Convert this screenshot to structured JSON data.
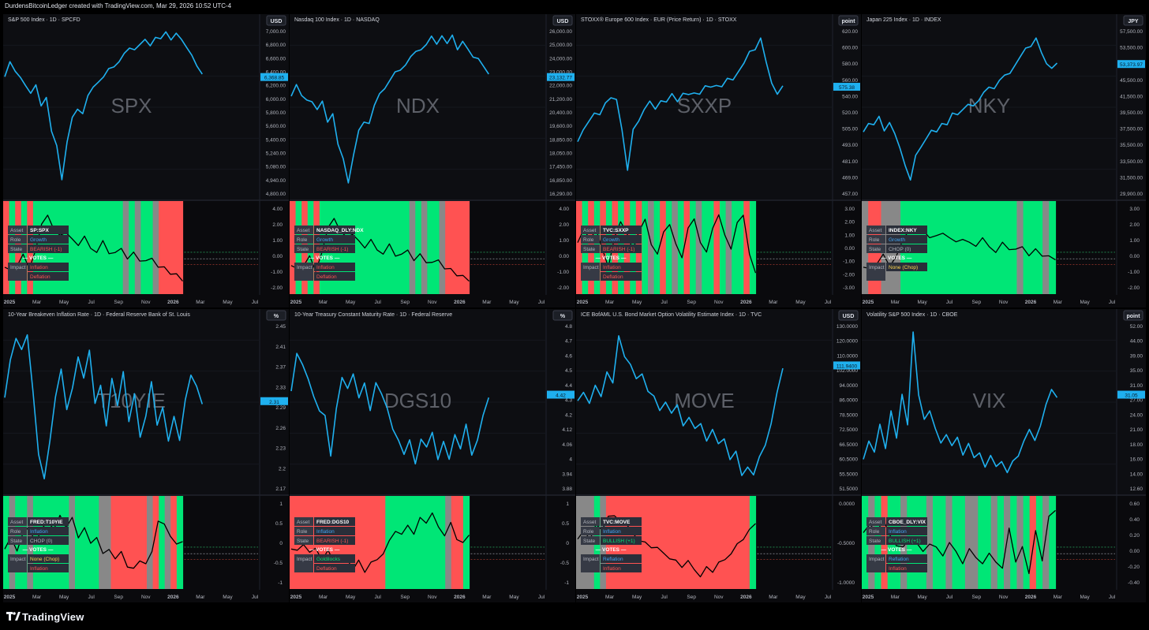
{
  "header": {
    "attribution": "DurdensBitcoinLedger created with TradingView.com, Mar 29, 2026 10:52 UTC-4"
  },
  "footer": {
    "brand": "TradingView"
  },
  "colors": {
    "price_line": "#1fb0ef",
    "bullish_band": "#00e676",
    "bearish_band": "#ff5252",
    "chop_band": "#888888",
    "panel_bg": "#0d0e12",
    "label_box": "#22ab94"
  },
  "time_axis": [
    "2025",
    "Mar",
    "May",
    "Jul",
    "Sep",
    "Nov",
    "2026",
    "Mar",
    "May",
    "Jul"
  ],
  "panels": [
    {
      "title": "S&P 500 Index · 1D · SPCFD",
      "currency": "USD",
      "watermark": "SPX",
      "price_ticks": [
        "7,000.00",
        "6,800.00",
        "6,600.00",
        "6,400.00",
        "6,200.00",
        "6,000.00",
        "5,800.00",
        "5,600.00",
        "5,400.00",
        "5,240.00",
        "5,080.00",
        "4,940.00",
        "4,800.00"
      ],
      "last_price": "6,368.85",
      "price_path": [
        0.74,
        0.82,
        0.75,
        0.7,
        0.68,
        0.62,
        0.66,
        0.56,
        0.6,
        0.38,
        0.28,
        0.1,
        0.32,
        0.46,
        0.54,
        0.5,
        0.6,
        0.64,
        0.7,
        0.72,
        0.76,
        0.8,
        0.82,
        0.86,
        0.88,
        0.9,
        0.92,
        0.94,
        0.93,
        0.97,
        0.95,
        0.98,
        0.96,
        0.99,
        0.94,
        0.92,
        0.86,
        0.78,
        0.72
      ],
      "price_end_frac": 0.72,
      "osc_ticks": [
        "4.00",
        "2.00",
        "1.00",
        "0.00",
        "-1.00",
        "-2.00"
      ],
      "osc_path": [
        0.3,
        0.22,
        0.3,
        0.4,
        0.25,
        0.5,
        0.78,
        0.92,
        0.7,
        0.66,
        0.72,
        0.6,
        0.55,
        0.62,
        0.5,
        0.48,
        0.58,
        0.45,
        0.42,
        0.5,
        0.4,
        0.44,
        0.36,
        0.32,
        0.38,
        0.3,
        0.26,
        0.2,
        0.16,
        0.1
      ],
      "bands": [
        "R",
        "G",
        "R",
        "G",
        "R",
        "G",
        "G",
        "G",
        "G",
        "G",
        "G",
        "G",
        "G",
        "G",
        "G",
        "G",
        "G",
        "G",
        "G",
        "G",
        "N",
        "G",
        "N",
        "G",
        "G",
        "N",
        "R",
        "R",
        "R",
        "R"
      ],
      "labels": {
        "asset": "SP:SPX",
        "role": "Growth",
        "state": "BEARISH (-1)",
        "votes": "— VOTES —",
        "impact1": "Inflation",
        "impact2": "Deflation"
      },
      "label_colors": {
        "role": "#42a5f5",
        "state": "#ff5252",
        "impact1": "#ff5252",
        "impact2": "#ff5252"
      }
    },
    {
      "title": "Nasdaq 100 Index · 1D · NASDAQ",
      "currency": "USD",
      "watermark": "NDX",
      "price_ticks": [
        "26,000.00",
        "25,000.00",
        "24,000.00",
        "23,000.00",
        "22,000.00",
        "21,200.00",
        "20,400.00",
        "19,600.00",
        "18,850.00",
        "18,050.00",
        "17,450.00",
        "16,850.00",
        "16,290.00"
      ],
      "last_price": "23,132.77",
      "price_path": [
        0.62,
        0.68,
        0.6,
        0.56,
        0.58,
        0.52,
        0.56,
        0.46,
        0.5,
        0.3,
        0.2,
        0.08,
        0.24,
        0.38,
        0.46,
        0.44,
        0.54,
        0.6,
        0.66,
        0.7,
        0.74,
        0.78,
        0.8,
        0.84,
        0.86,
        0.9,
        0.92,
        0.96,
        0.94,
        0.98,
        0.92,
        0.96,
        0.9,
        0.94,
        0.88,
        0.86,
        0.84,
        0.78,
        0.72
      ],
      "price_end_frac": 0.72,
      "osc_ticks": [
        "4.00",
        "2.00",
        "1.00",
        "0.00",
        "-1.00",
        "-2.00"
      ],
      "osc_path": [
        0.32,
        0.24,
        0.3,
        0.38,
        0.22,
        0.48,
        0.74,
        0.88,
        0.68,
        0.64,
        0.7,
        0.58,
        0.52,
        0.58,
        0.48,
        0.46,
        0.54,
        0.42,
        0.4,
        0.48,
        0.38,
        0.42,
        0.34,
        0.3,
        0.36,
        0.28,
        0.24,
        0.18,
        0.14,
        0.1
      ],
      "bands": [
        "R",
        "G",
        "R",
        "G",
        "R",
        "G",
        "G",
        "G",
        "G",
        "G",
        "G",
        "G",
        "G",
        "G",
        "G",
        "G",
        "G",
        "G",
        "G",
        "G",
        "N",
        "G",
        "N",
        "G",
        "G",
        "N",
        "R",
        "R",
        "R",
        "R"
      ],
      "labels": {
        "asset": "NASDAQ_DLY:NDX",
        "role": "Growth",
        "state": "BEARISH (-1)",
        "votes": "— VOTES —",
        "impact1": "Inflation",
        "impact2": "Deflation"
      },
      "label_colors": {
        "role": "#42a5f5",
        "state": "#ff5252",
        "impact1": "#ff5252",
        "impact2": "#ff5252"
      }
    },
    {
      "title": "STOXX® Europe 600 Index · EUR (Price Return) · 1D · STOXX",
      "currency": "point",
      "watermark": "SXXP",
      "price_ticks": [
        "620.00",
        "600.00",
        "580.00",
        "560.00",
        "540.00",
        "520.00",
        "505.00",
        "493.00",
        "481.00",
        "469.00",
        "457.00"
      ],
      "last_price": "575.38",
      "price_path": [
        0.34,
        0.4,
        0.44,
        0.48,
        0.5,
        0.56,
        0.58,
        0.6,
        0.4,
        0.14,
        0.38,
        0.46,
        0.52,
        0.56,
        0.54,
        0.58,
        0.56,
        0.6,
        0.58,
        0.62,
        0.6,
        0.64,
        0.62,
        0.66,
        0.64,
        0.68,
        0.66,
        0.7,
        0.72,
        0.76,
        0.8,
        0.86,
        0.9,
        0.96,
        0.8,
        0.7,
        0.62,
        0.66
      ],
      "price_end_frac": 0.66,
      "osc_ticks": [
        "3.00",
        "2.00",
        "1.00",
        "0.00",
        "-1.00",
        "-2.00",
        "-3.00"
      ],
      "osc_path": [
        0.6,
        0.72,
        0.62,
        0.7,
        0.5,
        0.3,
        0.62,
        0.84,
        0.66,
        0.48,
        0.74,
        0.84,
        0.56,
        0.4,
        0.7,
        0.82,
        0.54,
        0.4,
        0.72,
        0.86,
        0.6,
        0.44,
        0.76,
        0.88,
        0.66,
        0.52,
        0.8,
        0.92,
        0.4,
        0.2
      ],
      "bands": [
        "R",
        "G",
        "R",
        "G",
        "R",
        "G",
        "R",
        "G",
        "R",
        "G",
        "R",
        "G",
        "N",
        "G",
        "R",
        "G",
        "N",
        "G",
        "R",
        "G",
        "N",
        "G",
        "G",
        "R",
        "G",
        "N",
        "G",
        "G",
        "R",
        "G"
      ],
      "labels": {
        "asset": "TVC:SXXP",
        "role": "Growth",
        "state": "BEARISH (-1)",
        "votes": "— VOTES —",
        "impact1": "Inflation",
        "impact2": "Deflation"
      },
      "label_colors": {
        "role": "#42a5f5",
        "state": "#ff5252",
        "impact1": "#ff5252",
        "impact2": "#ff5252"
      }
    },
    {
      "title": "Japan 225 Index · 1D · INDEX",
      "currency": "JPY",
      "watermark": "NKY",
      "price_ticks": [
        "57,500.00",
        "53,500.00",
        "49,500.00",
        "45,500.00",
        "41,500.00",
        "39,500.00",
        "37,500.00",
        "35,500.00",
        "33,500.00",
        "31,500.00",
        "29,900.00"
      ],
      "last_price": "53,373.97",
      "price_path": [
        0.4,
        0.44,
        0.42,
        0.46,
        0.4,
        0.44,
        0.36,
        0.3,
        0.18,
        0.08,
        0.22,
        0.3,
        0.34,
        0.38,
        0.4,
        0.44,
        0.42,
        0.48,
        0.5,
        0.52,
        0.54,
        0.56,
        0.58,
        0.62,
        0.64,
        0.66,
        0.7,
        0.72,
        0.76,
        0.8,
        0.84,
        0.88,
        0.92,
        0.96,
        0.86,
        0.82,
        0.78,
        0.8
      ],
      "price_end_frac": 0.8,
      "osc_ticks": [
        "3.00",
        "2.00",
        "1.00",
        "0.00",
        "-1.00",
        "-2.00"
      ],
      "osc_path": [
        0.3,
        0.24,
        0.32,
        0.4,
        0.28,
        0.44,
        0.6,
        0.74,
        0.68,
        0.72,
        0.66,
        0.64,
        0.7,
        0.6,
        0.58,
        0.64,
        0.56,
        0.54,
        0.6,
        0.52,
        0.48,
        0.56,
        0.5,
        0.46,
        0.52,
        0.44,
        0.48,
        0.42,
        0.38,
        0.36
      ],
      "bands": [
        "N",
        "R",
        "R",
        "N",
        "N",
        "N",
        "G",
        "G",
        "G",
        "G",
        "G",
        "G",
        "G",
        "G",
        "G",
        "G",
        "G",
        "G",
        "G",
        "G",
        "G",
        "G",
        "G",
        "G",
        "N",
        "G",
        "G",
        "G",
        "N",
        "G"
      ],
      "labels": {
        "asset": "INDEX:NKY",
        "role": "Growth",
        "state": "CHOP (0)",
        "votes": "— VOTES —",
        "impact1": "None (Chop)",
        "impact2": ""
      },
      "label_colors": {
        "role": "#42a5f5",
        "state": "#b0b3bb",
        "impact1": "#ffd54f",
        "impact2": "#ffd54f"
      }
    },
    {
      "title": "10-Year Breakeven Inflation Rate · 1D · Federal Reserve Bank of St. Louis",
      "currency": "%",
      "watermark": "T10YIE",
      "price_ticks": [
        "2.45",
        "2.41",
        "2.37",
        "2.33",
        "2.29",
        "2.26",
        "2.23",
        "2.2",
        "2.17"
      ],
      "last_price": "2.31",
      "price_path": [
        0.58,
        0.8,
        0.92,
        0.84,
        0.96,
        0.6,
        0.2,
        0.08,
        0.3,
        0.56,
        0.72,
        0.5,
        0.62,
        0.8,
        0.7,
        0.86,
        0.52,
        0.62,
        0.4,
        0.68,
        0.5,
        0.74,
        0.42,
        0.58,
        0.3,
        0.46,
        0.66,
        0.38,
        0.52,
        0.3,
        0.44,
        0.28,
        0.56,
        0.7,
        0.62,
        0.54
      ],
      "price_end_frac": 0.54,
      "osc_ticks": [
        "1",
        "0.5",
        "0",
        "-0.5",
        "-1"
      ],
      "osc_path": [
        0.46,
        0.56,
        0.42,
        0.6,
        0.7,
        0.52,
        0.66,
        0.78,
        0.64,
        0.84,
        0.72,
        0.8,
        0.58,
        0.66,
        0.5,
        0.6,
        0.36,
        0.44,
        0.28,
        0.4,
        0.24,
        0.18,
        0.3,
        0.22,
        0.4,
        0.8,
        0.72,
        0.6,
        0.46,
        0.52
      ],
      "bands": [
        "G",
        "N",
        "G",
        "G",
        "N",
        "G",
        "G",
        "G",
        "G",
        "G",
        "G",
        "N",
        "G",
        "G",
        "G",
        "G",
        "N",
        "N",
        "R",
        "R",
        "R",
        "R",
        "R",
        "R",
        "N",
        "R",
        "G",
        "N",
        "R",
        "G"
      ],
      "labels": {
        "asset": "FRED:T10YIE",
        "role": "Inflation",
        "state": "CHOP (0)",
        "votes": "— VOTES —",
        "impact1": "None (Chop)",
        "impact2": "Inflation"
      },
      "label_colors": {
        "role": "#42a5f5",
        "state": "#b0b3bb",
        "impact1": "#ffd54f",
        "impact2": "#ff5252"
      }
    },
    {
      "title": "10-Year Treasury Constant Maturity Rate · 1D · Federal Reserve",
      "currency": "%",
      "watermark": "DGS10",
      "price_ticks": [
        "4.8",
        "4.7",
        "4.6",
        "4.5",
        "4.4",
        "4.3",
        "4.2",
        "4.12",
        "4.06",
        "4",
        "3.94",
        "3.88"
      ],
      "last_price": "4.42",
      "price_path": [
        0.62,
        0.84,
        0.76,
        0.66,
        0.58,
        0.48,
        0.44,
        0.22,
        0.5,
        0.68,
        0.6,
        0.72,
        0.56,
        0.64,
        0.5,
        0.66,
        0.58,
        0.48,
        0.38,
        0.3,
        0.2,
        0.32,
        0.16,
        0.3,
        0.24,
        0.36,
        0.18,
        0.28,
        0.2,
        0.34,
        0.24,
        0.38,
        0.22,
        0.3,
        0.44,
        0.58
      ],
      "price_end_frac": 0.58,
      "osc_ticks": [
        "1",
        "0.5",
        "0",
        "-0.5",
        "-1"
      ],
      "osc_path": [
        0.46,
        0.4,
        0.5,
        0.36,
        0.44,
        0.32,
        0.4,
        0.28,
        0.24,
        0.34,
        0.2,
        0.28,
        0.16,
        0.24,
        0.3,
        0.4,
        0.52,
        0.66,
        0.58,
        0.72,
        0.64,
        0.8,
        0.76,
        0.84,
        0.7,
        0.62,
        0.74,
        0.56,
        0.48,
        0.6
      ],
      "bands": [
        "R",
        "R",
        "R",
        "R",
        "R",
        "R",
        "R",
        "R",
        "R",
        "R",
        "R",
        "R",
        "R",
        "R",
        "R",
        "R",
        "G",
        "G",
        "G",
        "G",
        "G",
        "G",
        "G",
        "G",
        "G",
        "G",
        "N",
        "R",
        "R",
        "G"
      ],
      "labels": {
        "asset": "FRED:DGS10",
        "role": "Inflation",
        "state": "BEARISH (-1)",
        "votes": "— VOTES —",
        "impact1": "Goldilocks",
        "impact2": "Deflation"
      },
      "label_colors": {
        "role": "#42a5f5",
        "state": "#ff5252",
        "impact1": "#00e676",
        "impact2": "#ff5252"
      }
    },
    {
      "title": "ICE BofAML U.S. Bond Market Option Volatility Estimate Index · 1D · TVC",
      "currency": "USD",
      "watermark": "MOVE",
      "price_ticks": [
        "130.0000",
        "120.0000",
        "110.0000",
        "102.0000",
        "94.0000",
        "86.0000",
        "78.5000",
        "72.5000",
        "66.5000",
        "60.5000",
        "55.5000",
        "51.5000"
      ],
      "last_price": "111.9400",
      "price_path": [
        0.56,
        0.6,
        0.52,
        0.62,
        0.58,
        0.72,
        0.64,
        0.96,
        0.82,
        0.76,
        0.66,
        0.72,
        0.6,
        0.56,
        0.5,
        0.54,
        0.46,
        0.5,
        0.4,
        0.44,
        0.36,
        0.42,
        0.3,
        0.36,
        0.26,
        0.32,
        0.18,
        0.22,
        0.1,
        0.14,
        0.08,
        0.18,
        0.28,
        0.4,
        0.58,
        0.76
      ],
      "price_end_frac": 0.76,
      "osc_ticks": [
        "0.0000",
        "-0.5000",
        "-1.0000"
      ],
      "osc_path": [
        0.58,
        0.64,
        0.56,
        0.7,
        0.66,
        0.86,
        0.82,
        0.78,
        0.7,
        0.62,
        0.56,
        0.5,
        0.46,
        0.42,
        0.38,
        0.34,
        0.28,
        0.22,
        0.26,
        0.18,
        0.12,
        0.2,
        0.16,
        0.24,
        0.3,
        0.4,
        0.48,
        0.56,
        0.64,
        0.74
      ],
      "bands": [
        "N",
        "N",
        "N",
        "G",
        "N",
        "R",
        "R",
        "R",
        "R",
        "R",
        "R",
        "R",
        "R",
        "R",
        "R",
        "R",
        "R",
        "R",
        "R",
        "R",
        "R",
        "R",
        "R",
        "R",
        "R",
        "R",
        "R",
        "R",
        "R",
        "G"
      ],
      "labels": {
        "asset": "TVC:MOVE",
        "role": "Inflation",
        "state": "BULLISH (+1)",
        "votes": "— VOTES —",
        "impact1": "Reflation",
        "impact2": "Inflation"
      },
      "label_colors": {
        "role": "#42a5f5",
        "state": "#00e676",
        "impact1": "#42a5f5",
        "impact2": "#ff5252"
      }
    },
    {
      "title": "Volatility S&P 500 Index · 1D · CBOE",
      "currency": "point",
      "watermark": "VIX",
      "price_ticks": [
        "52.00",
        "44.00",
        "39.00",
        "35.00",
        "31.00",
        "27.00",
        "24.00",
        "21.00",
        "18.00",
        "16.00",
        "14.00",
        "12.60"
      ],
      "last_price": "31.05",
      "price_path": [
        0.2,
        0.3,
        0.22,
        0.38,
        0.26,
        0.48,
        0.3,
        0.6,
        0.4,
        0.96,
        0.56,
        0.44,
        0.48,
        0.36,
        0.3,
        0.34,
        0.26,
        0.3,
        0.22,
        0.28,
        0.18,
        0.24,
        0.14,
        0.2,
        0.12,
        0.18,
        0.1,
        0.16,
        0.22,
        0.3,
        0.36,
        0.28,
        0.4,
        0.52,
        0.6,
        0.58
      ],
      "price_end_frac": 0.58,
      "osc_ticks": [
        "0.60",
        "0.40",
        "0.20",
        "0.00",
        "-0.20",
        "-0.40"
      ],
      "osc_path": [
        0.66,
        0.72,
        0.64,
        0.76,
        0.6,
        0.5,
        0.44,
        0.58,
        0.48,
        0.4,
        0.52,
        0.44,
        0.36,
        0.48,
        0.4,
        0.28,
        0.42,
        0.34,
        0.22,
        0.38,
        0.3,
        0.18,
        0.7,
        0.24,
        0.46,
        0.16,
        0.64,
        0.3,
        0.8,
        0.9
      ],
      "bands": [
        "G",
        "N",
        "G",
        "R",
        "G",
        "G",
        "N",
        "G",
        "G",
        "G",
        "N",
        "G",
        "G",
        "N",
        "G",
        "G",
        "N",
        "N",
        "G",
        "G",
        "N",
        "G",
        "N",
        "G",
        "N",
        "G",
        "R",
        "G",
        "N",
        "G"
      ],
      "labels": {
        "asset": "CBOE_DLY:VIX",
        "role": "Inflation",
        "state": "BULLISH (+1)",
        "votes": "— VOTES —",
        "impact1": "Reflation",
        "impact2": "Inflation"
      },
      "label_colors": {
        "role": "#42a5f5",
        "state": "#00e676",
        "impact1": "#42a5f5",
        "impact2": "#ff5252"
      }
    }
  ]
}
